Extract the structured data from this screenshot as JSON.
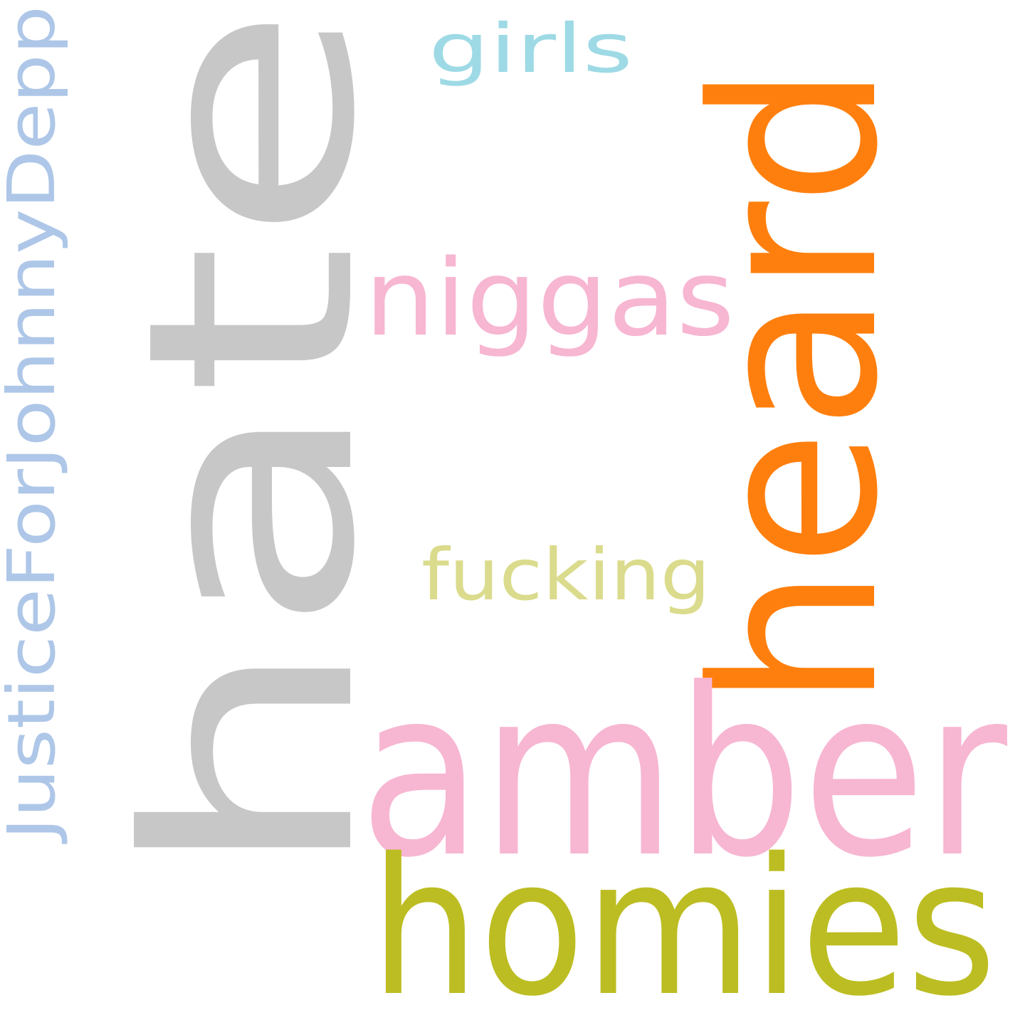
{
  "words": [
    {
      "key": "hate",
      "text": "hate",
      "color": "#c7c7c7"
    },
    {
      "key": "heard",
      "text": "heard",
      "color": "#ff7f0e"
    },
    {
      "key": "amber",
      "text": "amber",
      "color": "#f7b6d2"
    },
    {
      "key": "homies",
      "text": "homies",
      "color": "#bcbd22"
    },
    {
      "key": "niggas",
      "text": "niggas",
      "color": "#f7b6d2"
    },
    {
      "key": "fucking",
      "text": "fucking",
      "color": "#dbdb8d"
    },
    {
      "key": "girls",
      "text": "girls",
      "color": "#9edae5"
    },
    {
      "key": "justice",
      "text": "JusticeForJohnnyDepp",
      "color": "#aec7e8"
    }
  ]
}
